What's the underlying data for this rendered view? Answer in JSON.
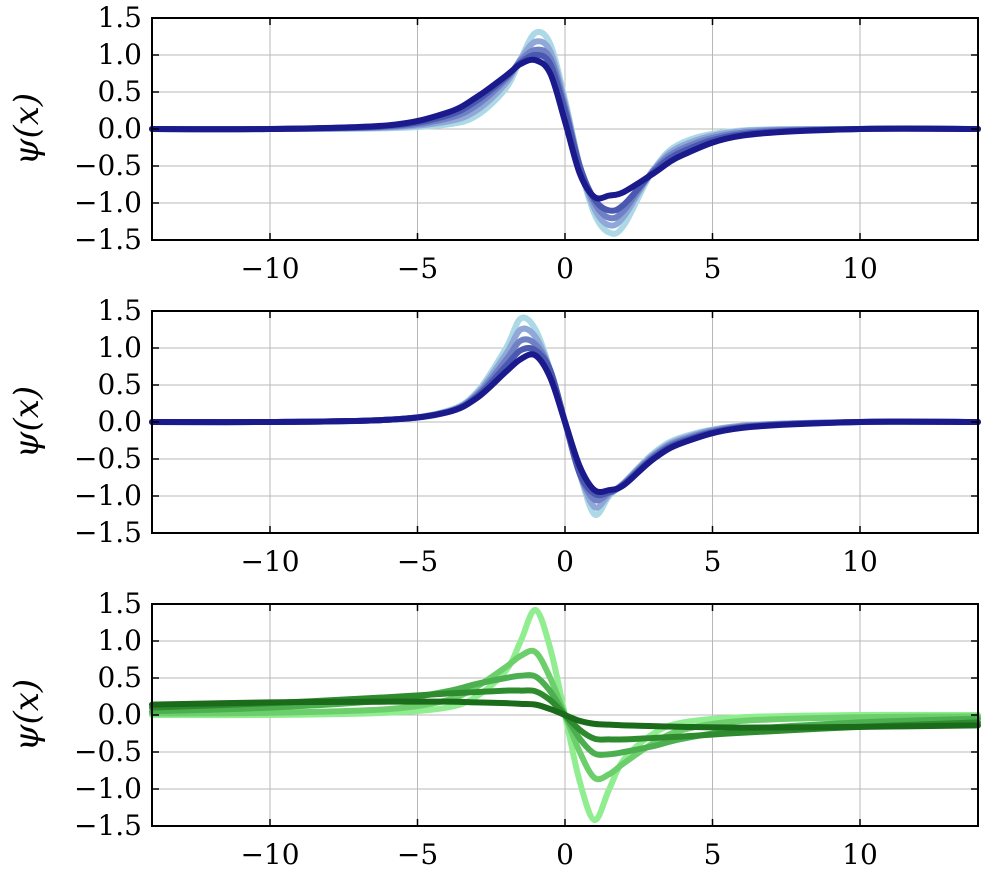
{
  "chart_data": [
    {
      "type": "line",
      "ylabel": "ψ(x)",
      "xlim": [
        -14,
        14
      ],
      "ylim": [
        -1.5,
        1.5
      ],
      "xticks": [
        "−10",
        "−5",
        "0",
        "5",
        "10"
      ],
      "yticks": [
        "1.5",
        "1.0",
        "0.5",
        "0.0",
        "−0.5",
        "−1.0",
        "−1.5"
      ],
      "grid": true,
      "series": [
        {
          "color": "#add8e6",
          "values": {
            "x": [
              -14,
              -10,
              -6,
              -4,
              -3,
              -2,
              -1.5,
              -1,
              -0.5,
              0,
              0.5,
              1,
              1.5,
              2,
              3,
              4,
              6,
              10,
              14
            ],
            "y": [
              0,
              0,
              0.01,
              0.06,
              0.18,
              0.55,
              0.95,
              1.3,
              1.15,
              0.4,
              -0.5,
              -1.15,
              -1.4,
              -1.3,
              -0.55,
              -0.18,
              -0.02,
              0,
              0
            ]
          }
        },
        {
          "color": "#8fa8d8",
          "values": {
            "x": [
              -14,
              -10,
              -6,
              -4,
              -3,
              -2,
              -1.5,
              -1,
              -0.5,
              0,
              0.5,
              1,
              1.5,
              2,
              3,
              4,
              6,
              10,
              14
            ],
            "y": [
              0,
              0,
              0.02,
              0.1,
              0.25,
              0.62,
              0.95,
              1.18,
              1.05,
              0.35,
              -0.5,
              -1.08,
              -1.3,
              -1.18,
              -0.55,
              -0.22,
              -0.03,
              0,
              0
            ]
          }
        },
        {
          "color": "#6f80c4",
          "values": {
            "x": [
              -14,
              -10,
              -6,
              -4,
              -3,
              -2,
              -1.5,
              -1,
              -0.5,
              0,
              0.5,
              1,
              1.5,
              2,
              3,
              4,
              6,
              10,
              14
            ],
            "y": [
              0,
              0,
              0.03,
              0.14,
              0.32,
              0.67,
              0.93,
              1.07,
              0.96,
              0.3,
              -0.5,
              -1.0,
              -1.2,
              -1.1,
              -0.56,
              -0.26,
              -0.05,
              0,
              0
            ]
          }
        },
        {
          "color": "#4a58b0",
          "values": {
            "x": [
              -14,
              -10,
              -6,
              -4,
              -3,
              -2,
              -1.5,
              -1,
              -0.5,
              0,
              0.5,
              1,
              1.5,
              2,
              3,
              4,
              6,
              10,
              14
            ],
            "y": [
              0,
              0,
              0.04,
              0.18,
              0.38,
              0.7,
              0.9,
              1.0,
              0.88,
              0.25,
              -0.5,
              -0.95,
              -1.1,
              -1.02,
              -0.58,
              -0.3,
              -0.07,
              0,
              0
            ]
          }
        },
        {
          "color": "#1a1a8c",
          "values": {
            "x": [
              -14,
              -10,
              -6,
              -4,
              -3,
              -2,
              -1.5,
              -1,
              -0.5,
              0,
              0.5,
              1,
              1.5,
              2,
              3,
              4,
              6,
              10,
              14
            ],
            "y": [
              0,
              0,
              0.05,
              0.22,
              0.43,
              0.72,
              0.88,
              0.93,
              0.75,
              0.1,
              -0.6,
              -0.92,
              -0.9,
              -0.85,
              -0.6,
              -0.35,
              -0.09,
              0,
              0
            ]
          }
        }
      ]
    },
    {
      "type": "line",
      "ylabel": "ψ(x)",
      "xlim": [
        -14,
        14
      ],
      "ylim": [
        -1.5,
        1.5
      ],
      "xticks": [
        "−10",
        "−5",
        "0",
        "5",
        "10"
      ],
      "yticks": [
        "1.5",
        "1.0",
        "0.5",
        "0.0",
        "−0.5",
        "−1.0",
        "−1.5"
      ],
      "grid": true,
      "series": [
        {
          "color": "#add8e6",
          "values": {
            "x": [
              -14,
              -10,
              -6,
              -4,
              -3,
              -2,
              -1.5,
              -1,
              -0.5,
              0,
              0.5,
              1,
              1.5,
              2,
              3,
              4,
              6,
              10,
              14
            ],
            "y": [
              0,
              0,
              0.03,
              0.15,
              0.4,
              1.0,
              1.4,
              1.25,
              0.7,
              0.0,
              -0.7,
              -1.25,
              -1.0,
              -0.82,
              -0.42,
              -0.2,
              -0.05,
              0,
              0
            ]
          }
        },
        {
          "color": "#8fa8d8",
          "values": {
            "x": [
              -14,
              -10,
              -6,
              -4,
              -3,
              -2,
              -1.5,
              -1,
              -0.5,
              0,
              0.5,
              1,
              1.5,
              2,
              3,
              4,
              6,
              10,
              14
            ],
            "y": [
              0,
              0,
              0.03,
              0.14,
              0.38,
              0.92,
              1.25,
              1.15,
              0.7,
              0.0,
              -0.7,
              -1.15,
              -0.98,
              -0.82,
              -0.44,
              -0.22,
              -0.05,
              0,
              0
            ]
          }
        },
        {
          "color": "#6f80c4",
          "values": {
            "x": [
              -14,
              -10,
              -6,
              -4,
              -3,
              -2,
              -1.5,
              -1,
              -0.5,
              0,
              0.5,
              1,
              1.5,
              2,
              3,
              4,
              6,
              10,
              14
            ],
            "y": [
              0,
              0,
              0.03,
              0.14,
              0.36,
              0.84,
              1.1,
              1.05,
              0.7,
              0.0,
              -0.7,
              -1.05,
              -0.96,
              -0.83,
              -0.46,
              -0.24,
              -0.06,
              0,
              0
            ]
          }
        },
        {
          "color": "#4a58b0",
          "values": {
            "x": [
              -14,
              -10,
              -6,
              -4,
              -3,
              -2,
              -1.5,
              -1,
              -0.5,
              0,
              0.5,
              1,
              1.5,
              2,
              3,
              4,
              6,
              10,
              14
            ],
            "y": [
              0,
              0,
              0.03,
              0.13,
              0.34,
              0.76,
              0.97,
              0.97,
              0.7,
              0.0,
              -0.7,
              -0.97,
              -0.95,
              -0.84,
              -0.48,
              -0.26,
              -0.07,
              0,
              0
            ]
          }
        },
        {
          "color": "#1a1a8c",
          "values": {
            "x": [
              -14,
              -10,
              -6,
              -4,
              -3,
              -2,
              -1.5,
              -1,
              -0.5,
              0,
              0.5,
              1,
              1.5,
              2,
              3,
              4,
              6,
              10,
              14
            ],
            "y": [
              0,
              0,
              0.03,
              0.13,
              0.32,
              0.68,
              0.85,
              0.9,
              0.6,
              0.0,
              -0.6,
              -0.92,
              -0.92,
              -0.85,
              -0.5,
              -0.28,
              -0.08,
              0,
              0
            ]
          }
        }
      ]
    },
    {
      "type": "line",
      "ylabel": "ψ(x)",
      "xlim": [
        -14,
        14
      ],
      "ylim": [
        -1.5,
        1.5
      ],
      "xticks": [
        "−10",
        "−5",
        "0",
        "5",
        "10"
      ],
      "yticks": [
        "1.5",
        "1.0",
        "0.5",
        "0.0",
        "−0.5",
        "−1.0",
        "−1.5"
      ],
      "grid": true,
      "series": [
        {
          "color": "#90ee90",
          "values": {
            "x": [
              -14,
              -10,
              -6,
              -4,
              -3,
              -2,
              -1.5,
              -1,
              -0.5,
              0,
              0.5,
              1,
              1.5,
              2,
              3,
              4,
              6,
              10,
              14
            ],
            "y": [
              0,
              0,
              0.03,
              0.1,
              0.25,
              0.6,
              1.0,
              1.42,
              0.9,
              0.0,
              -0.9,
              -1.42,
              -1.0,
              -0.6,
              -0.25,
              -0.1,
              -0.03,
              0,
              0
            ]
          }
        },
        {
          "color": "#6ccf6c",
          "values": {
            "x": [
              -14,
              -10,
              -6,
              -4,
              -3,
              -2,
              -1.5,
              -1,
              -0.5,
              0,
              0.5,
              1,
              1.5,
              2,
              3,
              4,
              6,
              10,
              14
            ],
            "y": [
              0.02,
              0.03,
              0.08,
              0.2,
              0.38,
              0.65,
              0.8,
              0.85,
              0.5,
              0.0,
              -0.5,
              -0.85,
              -0.8,
              -0.65,
              -0.38,
              -0.2,
              -0.08,
              -0.03,
              -0.02
            ]
          }
        },
        {
          "color": "#4caf50",
          "values": {
            "x": [
              -14,
              -10,
              -6,
              -4,
              -3,
              -2,
              -1.5,
              -1,
              -0.5,
              0,
              0.5,
              1,
              1.5,
              2,
              3,
              4,
              6,
              10,
              14
            ],
            "y": [
              0.05,
              0.1,
              0.2,
              0.32,
              0.42,
              0.5,
              0.53,
              0.52,
              0.32,
              0.0,
              -0.32,
              -0.52,
              -0.53,
              -0.5,
              -0.42,
              -0.32,
              -0.2,
              -0.1,
              -0.05
            ]
          }
        },
        {
          "color": "#2e8b2e",
          "values": {
            "x": [
              -14,
              -10,
              -6,
              -4,
              -3,
              -2,
              -1.5,
              -1,
              -0.5,
              0,
              0.5,
              1,
              1.5,
              2,
              3,
              4,
              6,
              10,
              14
            ],
            "y": [
              0.1,
              0.16,
              0.24,
              0.29,
              0.31,
              0.33,
              0.33,
              0.32,
              0.2,
              0.0,
              -0.2,
              -0.32,
              -0.33,
              -0.33,
              -0.31,
              -0.29,
              -0.24,
              -0.16,
              -0.1
            ]
          }
        },
        {
          "color": "#1a6b1a",
          "values": {
            "x": [
              -14,
              -10,
              -6,
              -4,
              -3,
              -2,
              -1.5,
              -1,
              -0.5,
              0,
              0.5,
              1,
              1.5,
              2,
              3,
              4,
              6,
              10,
              14
            ],
            "y": [
              0.14,
              0.17,
              0.18,
              0.18,
              0.17,
              0.16,
              0.15,
              0.14,
              0.08,
              0.0,
              -0.08,
              -0.12,
              -0.13,
              -0.14,
              -0.15,
              -0.16,
              -0.17,
              -0.16,
              -0.14
            ]
          }
        }
      ]
    }
  ]
}
